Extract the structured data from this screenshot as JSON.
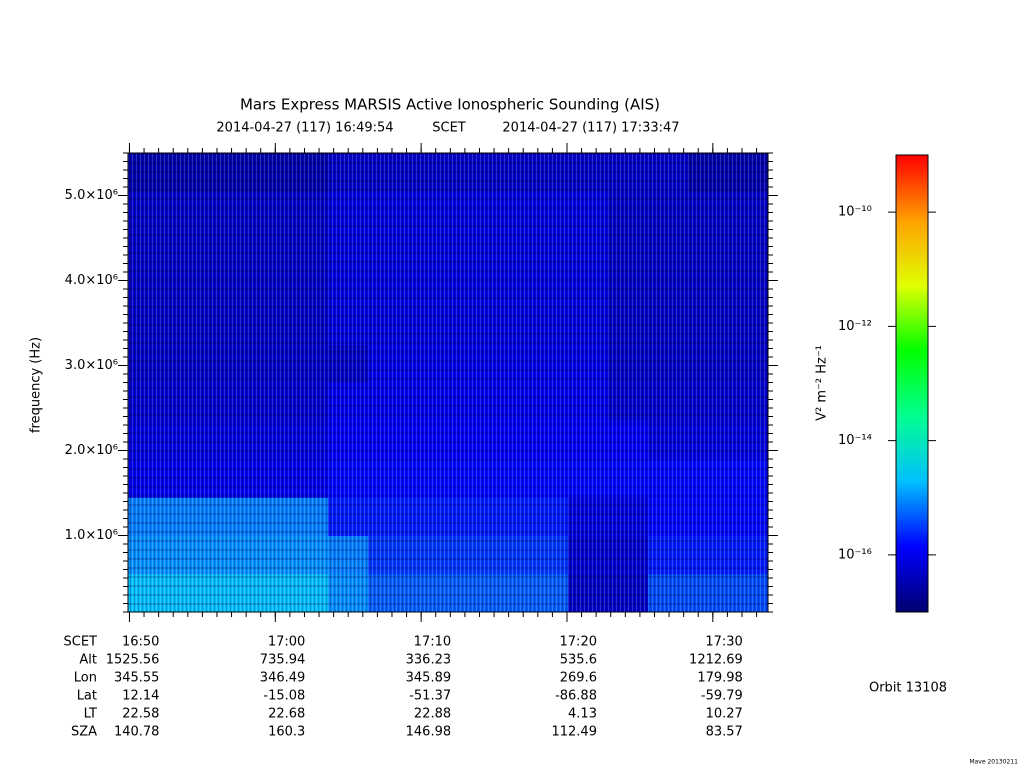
{
  "chart_data": {
    "type": "heatmap",
    "title": "Mars Express MARSIS Active Ionospheric Sounding (AIS)",
    "subtitle_start": "2014-04-27 (117) 16:49:54",
    "subtitle_mid": "SCET",
    "subtitle_end": "2014-04-27 (117) 17:33:47",
    "ylabel": "frequency (Hz)",
    "zlabel": "V² m⁻² Hz⁻¹",
    "xlim": [
      1009.9,
      1053.783
    ],
    "xticks": [
      {
        "value": 1010,
        "label": "16:50"
      },
      {
        "value": 1020,
        "label": "17:00"
      },
      {
        "value": 1030,
        "label": "17:10"
      },
      {
        "value": 1040,
        "label": "17:20"
      },
      {
        "value": 1050,
        "label": "17:30"
      }
    ],
    "ylim": [
      100000,
      5500000
    ],
    "yticks": [
      {
        "value": 1000000,
        "label": "1.0×10⁶"
      },
      {
        "value": 2000000,
        "label": "2.0×10⁶"
      },
      {
        "value": 3000000,
        "label": "3.0×10⁶"
      },
      {
        "value": 4000000,
        "label": "4.0×10⁶"
      },
      {
        "value": 5000000,
        "label": "5.0×10⁶"
      }
    ],
    "zlim": [
      1e-17,
      1e-09
    ],
    "zlog": true,
    "zticks": [
      {
        "value": 1e-10,
        "label": "10⁻¹⁰"
      },
      {
        "value": 1e-12,
        "label": "10⁻¹²"
      },
      {
        "value": 1e-14,
        "label": "10⁻¹⁴"
      },
      {
        "value": 1e-16,
        "label": "10⁻¹⁶"
      }
    ],
    "colormap": [
      "#000070",
      "#0000ff",
      "#00c0ff",
      "#00ff90",
      "#00ff00",
      "#e0ff00",
      "#ffa000",
      "#ff0000"
    ],
    "time_bins": [
      1009.9,
      1012.643,
      1015.385,
      1018.128,
      1020.871,
      1023.613,
      1026.356,
      1029.099,
      1031.842,
      1034.584,
      1037.327,
      1040.07,
      1042.812,
      1045.555,
      1048.298,
      1051.04,
      1053.783
    ],
    "freq_bins": [
      100000,
      550000,
      1000000,
      1450000,
      1900000,
      2350000,
      2800000,
      3250000,
      3700000,
      4150000,
      4600000,
      5050000,
      5500000
    ],
    "z": [
      [
        2e-15,
        2e-15,
        2e-15,
        2e-15,
        2e-15,
        1e-15,
        5e-16,
        5e-16,
        5e-16,
        5e-16,
        5e-16,
        5e-17,
        5e-17,
        4e-16,
        4e-16,
        4e-16
      ],
      [
        1e-15,
        1e-15,
        1e-15,
        1e-15,
        1e-15,
        8e-16,
        3e-16,
        3e-16,
        3e-16,
        3e-16,
        3e-16,
        6e-17,
        6e-17,
        2e-16,
        2e-16,
        2e-16
      ],
      [
        8e-16,
        8e-16,
        8e-16,
        8e-16,
        8e-16,
        2e-16,
        2e-16,
        2e-16,
        2e-16,
        2e-16,
        2e-16,
        8e-17,
        8e-17,
        1.5e-16,
        1.5e-16,
        1.5e-16
      ],
      [
        1e-16,
        1e-16,
        1e-16,
        1e-16,
        1e-16,
        1.5e-16,
        1.5e-16,
        1.5e-16,
        1.5e-16,
        1.5e-16,
        1.5e-16,
        1.5e-16,
        1.5e-16,
        1.5e-16,
        1.5e-16,
        1.5e-16
      ],
      [
        8e-17,
        8e-17,
        8e-17,
        8e-17,
        8e-17,
        1.2e-16,
        1.2e-16,
        1.2e-16,
        1.2e-16,
        1.2e-16,
        1.2e-16,
        1.2e-16,
        1.2e-16,
        8e-17,
        8e-17,
        8e-17
      ],
      [
        6e-17,
        6e-17,
        6e-17,
        6e-17,
        6e-17,
        1e-16,
        1e-16,
        1e-16,
        1e-16,
        1e-16,
        1e-16,
        1e-16,
        6e-17,
        6e-17,
        6e-17,
        6e-17
      ],
      [
        5e-17,
        5e-17,
        5e-17,
        5e-17,
        5e-17,
        5e-17,
        9e-17,
        9e-17,
        9e-17,
        9e-17,
        9e-17,
        9e-17,
        5e-17,
        5e-17,
        5e-17,
        5e-17
      ],
      [
        5e-17,
        5e-17,
        5e-17,
        5e-17,
        5e-17,
        8e-17,
        8e-17,
        8e-17,
        8e-17,
        8e-17,
        8e-17,
        8e-17,
        5e-17,
        5e-17,
        5e-17,
        5e-17
      ],
      [
        5e-17,
        5e-17,
        5e-17,
        5e-17,
        5e-17,
        8e-17,
        8e-17,
        8e-17,
        8e-17,
        8e-17,
        8e-17,
        8e-17,
        5e-17,
        5e-17,
        5e-17,
        5e-17
      ],
      [
        5e-17,
        5e-17,
        5e-17,
        5e-17,
        5e-17,
        8e-17,
        8e-17,
        8e-17,
        8e-17,
        8e-17,
        8e-17,
        8e-17,
        5e-17,
        5e-17,
        5e-17,
        5e-17
      ],
      [
        5e-17,
        5e-17,
        5e-17,
        5e-17,
        5e-17,
        8e-17,
        8e-17,
        8e-17,
        8e-17,
        8e-17,
        8e-17,
        8e-17,
        5e-17,
        5e-17,
        5e-17,
        5e-17
      ],
      [
        3e-17,
        3e-17,
        3e-17,
        3e-17,
        3e-17,
        5e-17,
        5e-17,
        5e-17,
        5e-17,
        5e-17,
        5e-17,
        5e-17,
        5e-17,
        5e-17,
        3e-17,
        3e-17
      ]
    ],
    "ephemeris_label": "SCET",
    "ephemeris": [
      {
        "label": "Alt",
        "values": [
          1525.56,
          735.94,
          336.23,
          535.6,
          1212.69
        ]
      },
      {
        "label": "Lon",
        "values": [
          345.55,
          346.49,
          345.89,
          269.6,
          179.98
        ]
      },
      {
        "label": "Lat",
        "values": [
          12.14,
          -15.08,
          -51.37,
          -86.88,
          -59.79
        ]
      },
      {
        "label": "LT",
        "values": [
          22.58,
          22.68,
          22.88,
          4.13,
          10.27
        ]
      },
      {
        "label": "SZA",
        "values": [
          140.78,
          160.3,
          146.98,
          112.49,
          83.57
        ]
      }
    ],
    "orbit": "Orbit 13108",
    "footer": "Mave 20130211"
  }
}
